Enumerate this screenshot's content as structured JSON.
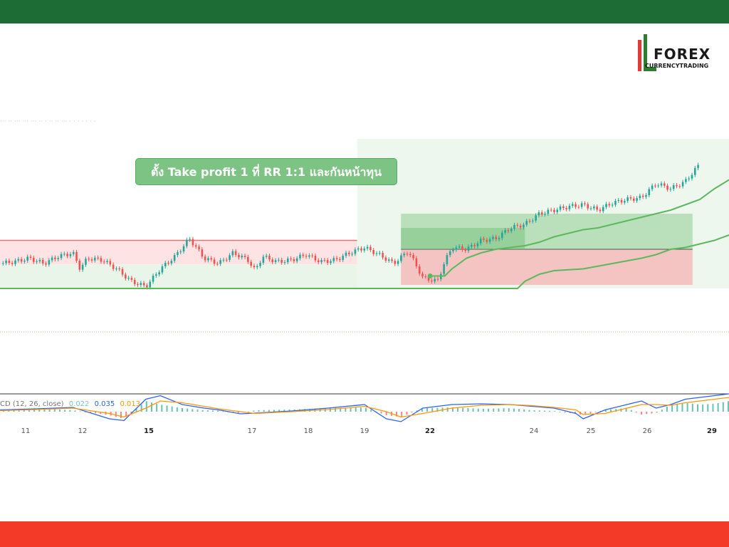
{
  "colors": {
    "top_bar": "#1d6b35",
    "bottom_bar": "#f33a29",
    "up_candle": "#26a69a",
    "down_candle": "#ef5350",
    "supertrend_line": "#5cb85c",
    "profit_zone": "#8fcc92",
    "loss_zone": "#f4b7b7",
    "callout_bg": "#7dc383",
    "macd_line": "#2962ff",
    "signal_line": "#ff9800"
  },
  "logo": {
    "text": "FOREX",
    "subtext": "CURRENCYTRADING"
  },
  "callout": {
    "text": "ตั้ง Take profit 1 ที่ RR 1:1 และกันหน้าทุน"
  },
  "macd_legend": {
    "label": "CD (12, 26, close)",
    "histogram": "0.022",
    "macd": "0.035",
    "signal": "0.013"
  },
  "chart_data": {
    "type": "line",
    "title": "",
    "xlabel": "",
    "ylabel": "",
    "x_ticks": [
      {
        "label": "11",
        "bold": false
      },
      {
        "label": "12",
        "bold": false
      },
      {
        "label": "15",
        "bold": true
      },
      {
        "label": "17",
        "bold": false
      },
      {
        "label": "18",
        "bold": false
      },
      {
        "label": "19",
        "bold": false
      },
      {
        "label": "22",
        "bold": true
      },
      {
        "label": "24",
        "bold": false
      },
      {
        "label": "25",
        "bold": false
      },
      {
        "label": "26",
        "bold": false
      },
      {
        "label": "29",
        "bold": true
      }
    ],
    "price_series": {
      "name": "",
      "x": [
        0,
        2,
        4,
        6,
        8,
        10,
        11,
        12,
        14,
        16,
        18,
        20,
        22,
        24,
        26,
        28,
        30,
        32,
        34,
        35,
        36,
        38,
        40,
        42,
        44,
        46,
        48,
        50,
        52,
        54,
        56,
        58,
        60,
        61,
        62,
        64,
        66,
        68,
        70,
        72,
        74,
        76,
        78,
        80,
        82,
        84,
        86,
        88,
        90,
        92,
        94,
        96,
        98,
        100
      ],
      "values": [
        0.0,
        0.1,
        0.3,
        0.0,
        0.4,
        0.6,
        -0.3,
        0.3,
        0.2,
        -0.3,
        -1.0,
        -1.3,
        -0.3,
        0.4,
        1.4,
        0.3,
        0.0,
        0.6,
        0.2,
        -0.4,
        0.4,
        0.1,
        0.2,
        0.5,
        0.1,
        0.2,
        0.6,
        0.9,
        0.5,
        0.0,
        0.7,
        -0.8,
        -1.0,
        0.1,
        0.9,
        0.8,
        1.3,
        1.4,
        2.0,
        2.2,
        2.8,
        3.0,
        3.2,
        3.3,
        3.0,
        3.4,
        3.6,
        3.7,
        4.5,
        4.2,
        4.6,
        5.6,
        6.8,
        7.0
      ]
    },
    "trailing_stop": {
      "name": "",
      "x": [
        59,
        61,
        62,
        64,
        66,
        68,
        70,
        72,
        74,
        76,
        78,
        80,
        82,
        84,
        86,
        88,
        90,
        92,
        94,
        96,
        98,
        100
      ],
      "values": [
        -0.7,
        -0.7,
        -0.3,
        0.3,
        0.6,
        0.8,
        0.9,
        1.0,
        1.2,
        1.5,
        1.7,
        1.9,
        2.0,
        2.2,
        2.4,
        2.6,
        2.8,
        3.0,
        3.3,
        3.6,
        4.2,
        4.7
      ]
    },
    "lower_stop": {
      "name": "",
      "x": [
        0,
        20,
        40,
        60,
        71,
        72,
        74,
        76,
        80,
        84,
        88,
        90,
        92,
        94,
        96,
        98,
        100
      ],
      "values": [
        -1.4,
        -1.4,
        -1.4,
        -1.4,
        -1.4,
        -1.0,
        -0.6,
        -0.4,
        -0.3,
        0.0,
        0.3,
        0.5,
        0.8,
        0.9,
        1.1,
        1.3,
        1.6
      ]
    },
    "range_box": {
      "x_start": 0,
      "x_end": 49,
      "top": 1.3,
      "bottom": -1.4
    },
    "position_box": {
      "x_start": 55,
      "x_end": 95,
      "entry": 0.8,
      "take_profit": 2.8,
      "stop_loss": -1.2
    },
    "tp1_box": {
      "x_start": 55,
      "x_end": 72,
      "top": 2.0,
      "bottom": 0.8
    },
    "macd": {
      "x": [
        0,
        5,
        10,
        15,
        17,
        20,
        22,
        25,
        28,
        30,
        33,
        35,
        40,
        45,
        50,
        53,
        55,
        58,
        62,
        66,
        70,
        73,
        76,
        79,
        80,
        83,
        86,
        88,
        90,
        92,
        94,
        96,
        98,
        100
      ],
      "histogram": [
        0.005,
        0.01,
        0.004,
        -0.01,
        -0.02,
        0.03,
        0.02,
        0.01,
        0.004,
        0.003,
        -0.004,
        0.004,
        0.006,
        0.01,
        0.012,
        -0.01,
        -0.015,
        0.01,
        0.012,
        0.008,
        0.01,
        0.004,
        0.002,
        -0.006,
        -0.01,
        0.005,
        0.01,
        -0.008,
        -0.004,
        0.02,
        0.025,
        0.02,
        0.022,
        0.03
      ],
      "macd_line": [
        0.005,
        0.008,
        0.012,
        -0.02,
        -0.025,
        0.035,
        0.045,
        0.02,
        0.01,
        0.005,
        -0.006,
        -0.004,
        0.002,
        0.01,
        0.02,
        -0.02,
        -0.03,
        0.01,
        0.02,
        0.022,
        0.02,
        0.015,
        0.01,
        -0.005,
        -0.02,
        0.005,
        0.02,
        0.03,
        0.01,
        0.02,
        0.035,
        0.04,
        0.045,
        0.05
      ],
      "signal_line": [
        0.003,
        0.006,
        0.01,
        -0.005,
        -0.015,
        0.01,
        0.03,
        0.025,
        0.015,
        0.008,
        0.0,
        -0.005,
        0.0,
        0.006,
        0.015,
        0.0,
        -0.015,
        -0.005,
        0.01,
        0.018,
        0.02,
        0.017,
        0.012,
        0.005,
        -0.008,
        -0.005,
        0.01,
        0.02,
        0.02,
        0.018,
        0.025,
        0.03,
        0.035,
        0.04
      ]
    }
  }
}
